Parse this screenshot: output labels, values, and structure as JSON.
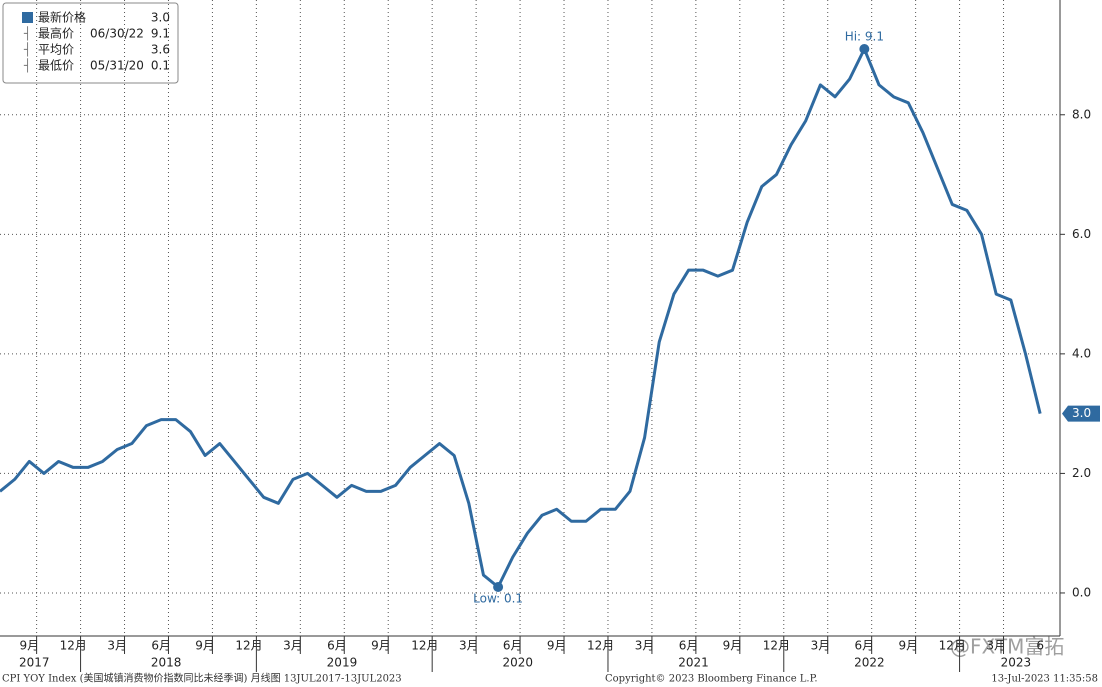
{
  "chart_data": {
    "type": "line",
    "color": "#2f6aa0",
    "categories": [
      null,
      null,
      "9月",
      null,
      null,
      "12月",
      null,
      null,
      "3月",
      null,
      null,
      "6月",
      null,
      null,
      "9月",
      null,
      null,
      "12月",
      null,
      null,
      "3月",
      null,
      null,
      "6月",
      null,
      null,
      "9月",
      null,
      null,
      "12月",
      null,
      null,
      "3月",
      null,
      null,
      "6月",
      null,
      null,
      "9月",
      null,
      null,
      "12月",
      null,
      null,
      "3月",
      null,
      null,
      "6月",
      null,
      null,
      "9月",
      null,
      null,
      "12月",
      null,
      null,
      "3月",
      null,
      null,
      "6月",
      null,
      null,
      "9月",
      null,
      null,
      "12月",
      null,
      null,
      "3月",
      null,
      null,
      "6"
    ],
    "category_years": [
      null,
      null,
      "2017",
      null,
      null,
      null,
      null,
      null,
      null,
      null,
      null,
      "2018",
      null,
      null,
      null,
      null,
      null,
      null,
      null,
      null,
      null,
      null,
      null,
      "2019",
      null,
      null,
      null,
      null,
      null,
      null,
      null,
      null,
      null,
      null,
      null,
      "2020",
      null,
      null,
      null,
      null,
      null,
      null,
      null,
      null,
      null,
      null,
      null,
      "2021",
      null,
      null,
      null,
      null,
      null,
      null,
      null,
      null,
      null,
      null,
      null,
      "2022",
      null,
      null,
      null,
      null,
      null,
      null,
      null,
      null,
      null,
      "2023",
      null,
      null
    ],
    "values": [
      1.7,
      1.9,
      2.2,
      2.0,
      2.2,
      2.1,
      2.1,
      2.2,
      2.4,
      2.5,
      2.8,
      2.9,
      2.9,
      2.7,
      2.3,
      2.5,
      2.2,
      1.9,
      1.6,
      1.5,
      1.9,
      2.0,
      1.8,
      1.6,
      1.8,
      1.7,
      1.7,
      1.8,
      2.1,
      2.3,
      2.5,
      2.3,
      1.5,
      0.3,
      0.1,
      0.6,
      1.0,
      1.3,
      1.4,
      1.2,
      1.2,
      1.4,
      1.4,
      1.7,
      2.6,
      4.2,
      5.0,
      5.4,
      5.4,
      5.3,
      5.4,
      6.2,
      6.8,
      7.0,
      7.5,
      7.9,
      8.5,
      8.3,
      8.6,
      9.1,
      8.5,
      8.3,
      8.2,
      7.7,
      7.1,
      6.5,
      6.4,
      6.0,
      5.0,
      4.9,
      4.0,
      3.0
    ],
    "ylim": [
      -0.72,
      9.92
    ],
    "yticks": [
      {
        "value": 0,
        "label": "0.0"
      },
      {
        "value": 2,
        "label": "2.0"
      },
      {
        "value": 4,
        "label": "4.0"
      },
      {
        "value": 6,
        "label": "6.0"
      },
      {
        "value": 8,
        "label": "8.0"
      }
    ],
    "grid": true,
    "high_label": "Hi: 9.1",
    "high_index": 59,
    "low_label": "Low: 0.1",
    "low_index": 34,
    "last_label": "3.0",
    "legend": [
      {
        "name": "最新价格",
        "date": "",
        "value": "3.0"
      },
      {
        "name": "最高价",
        "date": "06/30/22",
        "value": "9.1"
      },
      {
        "name": "平均价",
        "date": "",
        "value": "3.6"
      },
      {
        "name": "最低价",
        "date": "05/31/20",
        "value": "0.1"
      }
    ],
    "footer_left": "CPI YOY Index (美国城镇消费物价指数同比未经季调)  月线图 13JUL2017-13JUL2023",
    "footer_center": "Copyright© 2023 Bloomberg Finance L.P.",
    "footer_right": "13-Jul-2023 11:35:58",
    "watermark": "@FXTM富拓"
  }
}
